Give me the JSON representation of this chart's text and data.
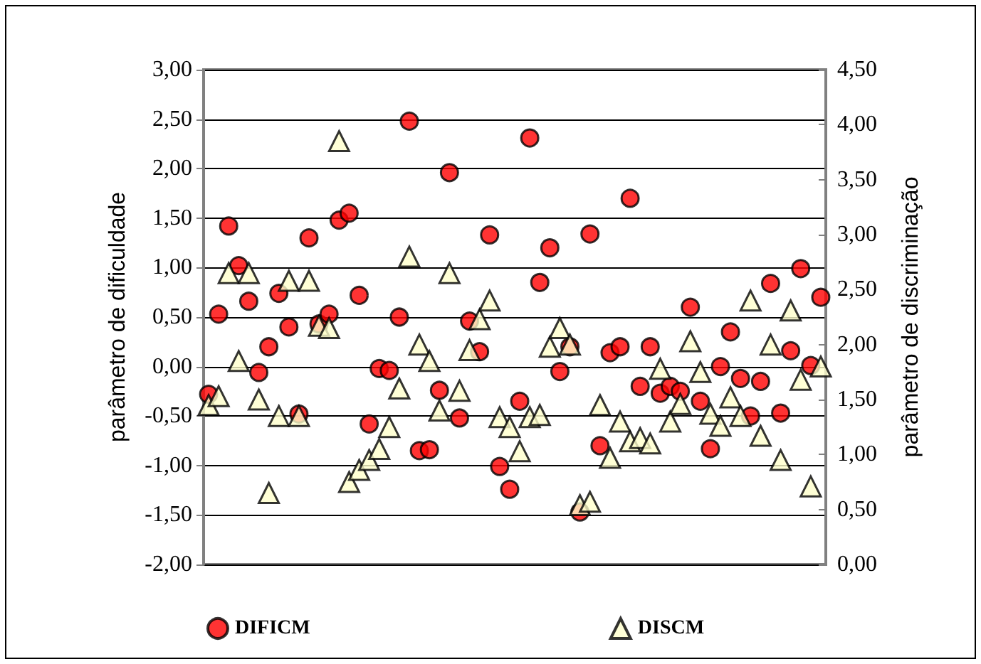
{
  "chart_data": {
    "type": "scatter",
    "ylabel": "parâmetro de dificuldade",
    "y2label": "parâmetro de discriminação",
    "categories": [
      null,
      null,
      null,
      null,
      null,
      null,
      null,
      null,
      null,
      null,
      null,
      null,
      null,
      null,
      null,
      null,
      null,
      null,
      null,
      null,
      null,
      null,
      null,
      null,
      null,
      null,
      null,
      null,
      null,
      null,
      null,
      null,
      null,
      null,
      null,
      null,
      null,
      null,
      null,
      null,
      null,
      null,
      null,
      null,
      null,
      null,
      null,
      null,
      null,
      null,
      null,
      null,
      null,
      null,
      null,
      null,
      null,
      null,
      null,
      null,
      null,
      null
    ],
    "series": [
      {
        "name": "DIFICM",
        "color": "#ff0000",
        "marker": "circle",
        "values": [
          -0.28,
          0.53,
          1.42,
          1.02,
          0.66,
          -0.06,
          0.2,
          0.74,
          0.4,
          -0.48,
          1.3,
          0.43,
          0.53,
          1.48,
          1.55,
          0.72,
          -0.58,
          -0.02,
          -0.04,
          0.5,
          2.48,
          -0.85,
          -0.84,
          -0.24,
          1.96,
          -0.52,
          0.46,
          0.15,
          1.33,
          -1.01,
          -1.24,
          -0.35,
          2.31,
          0.85,
          1.2,
          -0.05,
          0.2,
          -1.47,
          1.34,
          -0.8,
          0.14,
          0.2,
          1.7,
          -0.2,
          0.2,
          -0.27,
          -0.2,
          -0.25,
          0.6,
          -0.35,
          -0.83,
          0,
          0.35,
          -0.12,
          -0.5,
          -0.15,
          0.84,
          -0.47,
          0.16,
          0.99,
          0.01,
          0.7
        ]
      },
      {
        "name": "DISCM",
        "color": "#ffffcc",
        "marker": "triangle",
        "axis": "y2",
        "values": [
          1.45,
          1.53,
          2.65,
          1.85,
          2.65,
          1.5,
          0.65,
          1.35,
          2.58,
          1.35,
          2.58,
          2.17,
          2.15,
          3.85,
          0.75,
          0.86,
          0.95,
          1.05,
          1.25,
          1.6,
          2.8,
          2,
          1.85,
          1.4,
          2.65,
          1.58,
          1.95,
          2.23,
          2.4,
          1.34,
          1.25,
          1.03,
          1.34,
          1.36,
          1.98,
          2.15,
          2,
          0.54,
          0.57,
          1.45,
          0.97,
          1.3,
          1.12,
          1.15,
          1.1,
          1.78,
          1.3,
          1.46,
          2.03,
          1.75,
          1.37,
          1.26,
          1.52,
          1.35,
          2.4,
          1.17,
          2,
          0.95,
          2.31,
          1.68,
          0.71,
          1.8
        ]
      }
    ],
    "ylim": [
      -2,
      3
    ],
    "yticks": [
      {
        "value": -2,
        "label": "-2,00"
      },
      {
        "value": -1.5,
        "label": "-1,50"
      },
      {
        "value": -1,
        "label": "-1,00"
      },
      {
        "value": -0.5,
        "label": "-0,50"
      },
      {
        "value": 0,
        "label": "0,00"
      },
      {
        "value": 0.5,
        "label": "0,50"
      },
      {
        "value": 1,
        "label": "1,00"
      },
      {
        "value": 1.5,
        "label": "1,50"
      },
      {
        "value": 2,
        "label": "2,00"
      },
      {
        "value": 2.5,
        "label": "2,50"
      },
      {
        "value": 3,
        "label": "3,00"
      }
    ],
    "y2lim": [
      0,
      4.5
    ],
    "y2ticks": [
      {
        "value": 0,
        "label": "0,00"
      },
      {
        "value": 0.5,
        "label": "0,50"
      },
      {
        "value": 1,
        "label": "1,00"
      },
      {
        "value": 1.5,
        "label": "1,50"
      },
      {
        "value": 2,
        "label": "2,00"
      },
      {
        "value": 2.5,
        "label": "2,50"
      },
      {
        "value": 3,
        "label": "3,00"
      },
      {
        "value": 3.5,
        "label": "3,50"
      },
      {
        "value": 4,
        "label": "4,00"
      },
      {
        "value": 4.5,
        "label": "4,50"
      }
    ],
    "grid": "y",
    "legend": "bottom"
  }
}
